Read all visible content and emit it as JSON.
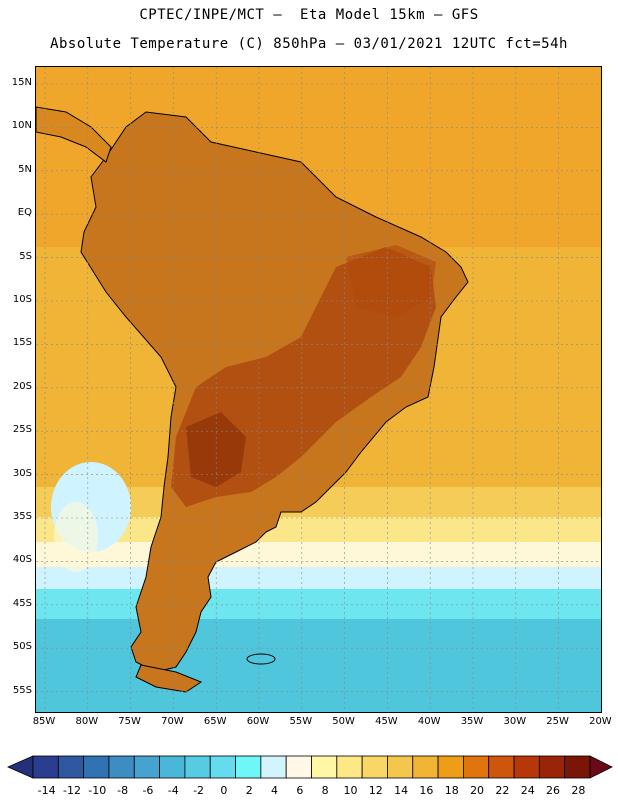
{
  "header": {
    "title_line1": "CPTEC/INPE/MCT –  Eta Model 15km – GFS",
    "title_line2": "Absolute Temperature (C) 850hPa – 03/01/2021 12UTC fct=54h"
  },
  "axes": {
    "lat_labels": [
      "15N",
      "10N",
      "5N",
      "EQ",
      "5S",
      "10S",
      "15S",
      "20S",
      "25S",
      "30S",
      "35S",
      "40S",
      "45S",
      "50S",
      "55S"
    ],
    "lon_labels": [
      "85W",
      "80W",
      "75W",
      "70W",
      "65W",
      "60W",
      "55W",
      "50W",
      "45W",
      "40W",
      "35W",
      "30W",
      "25W",
      "20W"
    ]
  },
  "map": {
    "region": "South America",
    "variable": "Absolute Temperature (C) 850hPa",
    "land_color": "#c8761e",
    "hot_color": "#a8400c",
    "ocean_warm_color": "#f0b437",
    "cold_colors": [
      "#fff8d8",
      "#d0f4ff",
      "#6ee6f0",
      "#4fc6dc"
    ]
  },
  "colorbar": {
    "labels": [
      "-14",
      "-12",
      "-10",
      "-8",
      "-6",
      "-4",
      "-2",
      "0",
      "2",
      "4",
      "6",
      "8",
      "10",
      "12",
      "14",
      "16",
      "18",
      "20",
      "22",
      "24",
      "26",
      "28"
    ],
    "colors": [
      "#2a3d8f",
      "#2e58a0",
      "#2f73b2",
      "#3d8cc2",
      "#46a2cf",
      "#4ab7d8",
      "#57cbe2",
      "#65dced",
      "#6ff6f8",
      "#d2f4fc",
      "#fff8e6",
      "#fff6a6",
      "#fde885",
      "#f8d766",
      "#f4c64d",
      "#f1b434",
      "#ee9e16",
      "#e07510",
      "#cd550c",
      "#b5370a",
      "#992408",
      "#7a1608"
    ],
    "arrow_left_color": "#24307a",
    "arrow_right_color": "#6a0a18"
  }
}
